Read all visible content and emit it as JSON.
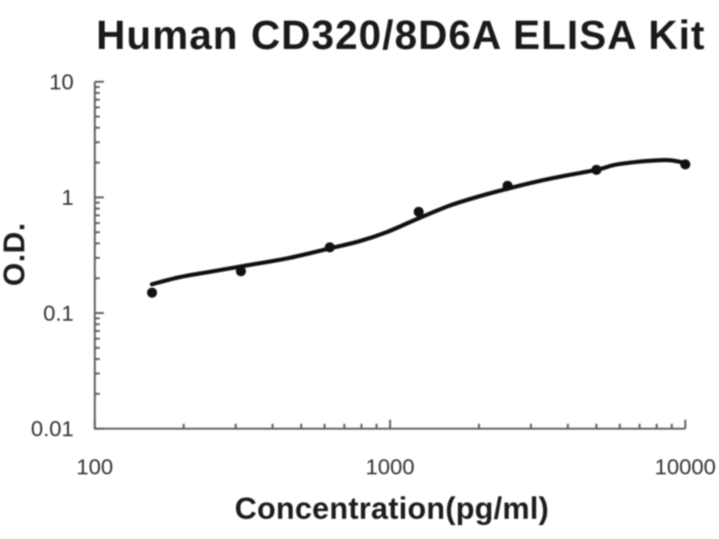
{
  "figure": {
    "background": "#ffffff"
  },
  "style": {
    "title_color": "#1a1a1a",
    "curve_color": "#111111",
    "marker_color": "#111111",
    "axis_color": "#5f5f5f",
    "tick_label_color": "#303030",
    "axis_label_color": "#1d1d1d"
  },
  "chart_data": {
    "type": "scatter",
    "title": "Human CD320/8D6A ELISA Kit",
    "xlabel": "Concentration(pg/ml)",
    "ylabel": "O.D.",
    "x_scale": "log",
    "y_scale": "log",
    "xlim": [
      100,
      10000
    ],
    "ylim": [
      0.01,
      10
    ],
    "grid": false,
    "legend": null,
    "x_major_ticks": [
      100,
      1000,
      10000
    ],
    "x_tick_labels": [
      "100",
      "1000",
      "10000"
    ],
    "x_minor_ticks": [
      200,
      300,
      400,
      500,
      600,
      700,
      800,
      900,
      2000,
      3000,
      4000,
      5000,
      6000,
      7000,
      8000,
      9000
    ],
    "y_major_ticks": [
      0.01,
      0.1,
      1,
      10
    ],
    "y_tick_labels": [
      "0.01",
      "0.1",
      "1",
      "10"
    ],
    "y_minor_ticks": [
      0.02,
      0.03,
      0.04,
      0.05,
      0.06,
      0.07,
      0.08,
      0.09,
      0.2,
      0.3,
      0.4,
      0.5,
      0.6,
      0.7,
      0.8,
      0.9,
      2,
      3,
      4,
      5,
      6,
      7,
      8,
      9
    ],
    "series": [
      {
        "name": "standard-points",
        "type": "scatter",
        "x": [
          156.25,
          312.5,
          625,
          1250,
          2500,
          5000,
          10000
        ],
        "y": [
          0.15,
          0.23,
          0.37,
          0.75,
          1.26,
          1.73,
          1.93
        ]
      },
      {
        "name": "fit-curve",
        "type": "line",
        "x": [
          156.1,
          193.9,
          256.7,
          339.8,
          449.7,
          625.2,
          788.0,
          972.4,
          1260.2,
          1588.2,
          1959.9,
          2504.9,
          3201.3,
          4006.3,
          5048.9,
          5727.8,
          6729.9,
          7851.9,
          8907.8,
          10176.8
        ],
        "y": [
          0.1772,
          0.2044,
          0.2317,
          0.2626,
          0.2976,
          0.3623,
          0.418,
          0.4999,
          0.6656,
          0.8474,
          1.0043,
          1.1903,
          1.3858,
          1.5566,
          1.7392,
          1.9053,
          2.0175,
          2.0836,
          2.0948,
          1.9677
        ]
      }
    ]
  }
}
